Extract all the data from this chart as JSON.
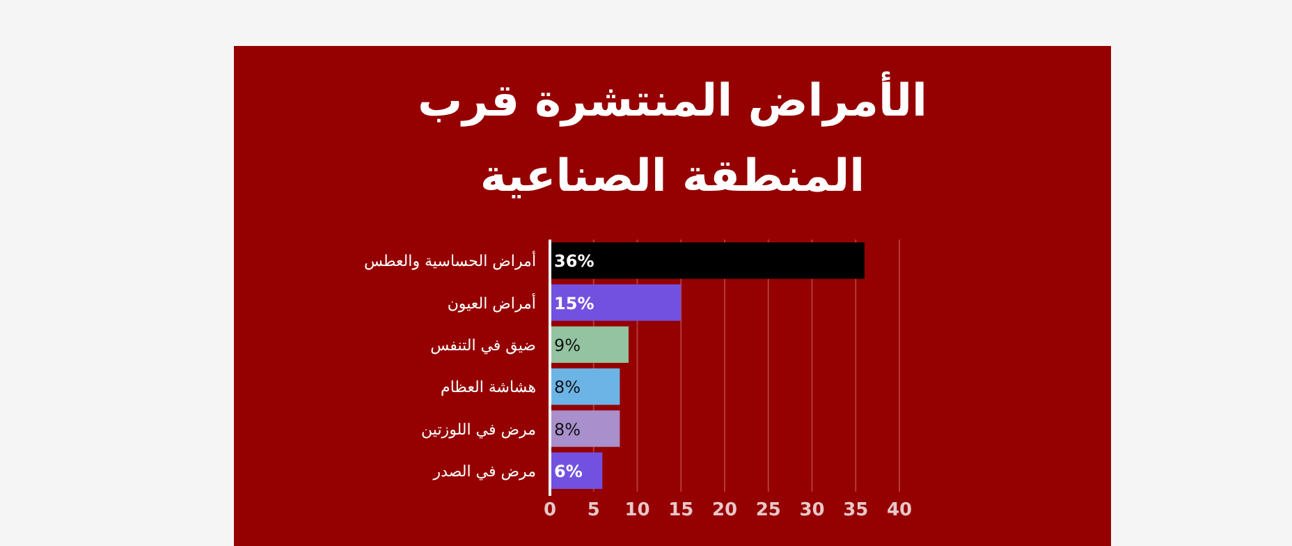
{
  "chart_data": {
    "type": "bar",
    "orientation": "horizontal",
    "title": "الأمراض المنتشرة قرب المنطقة الصناعية",
    "categories": [
      "أمراض الحساسية والعطس",
      "أمراض العيون",
      "ضيق في التنفس",
      "هشاشة العظام",
      "مرض في اللوزتين",
      "مرض في الصدر"
    ],
    "values": [
      36,
      15,
      9,
      8,
      8,
      6
    ],
    "colors": [
      "#000000",
      "#7351e0",
      "#93c3a0",
      "#6cb4e6",
      "#a98fcb",
      "#7351e0"
    ],
    "value_labels": [
      "36%",
      "15%",
      "9%",
      "8%",
      "8%",
      "6%"
    ],
    "xlim": [
      0,
      40
    ],
    "xticks": [
      0,
      5,
      10,
      15,
      20,
      25,
      30,
      35,
      40
    ],
    "grid": "x"
  }
}
